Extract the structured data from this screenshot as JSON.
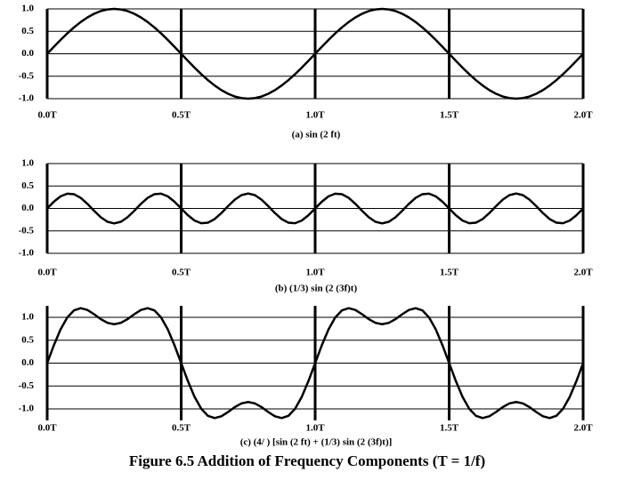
{
  "figure_caption": "Figure 6.5  Addition of Frequency Components (T = 1/f)",
  "chart_data": [
    {
      "type": "line",
      "title": "(a) sin (2  ft)",
      "grid": true,
      "color": "#000000",
      "x": [
        0,
        0.025,
        0.05,
        0.075,
        0.1,
        0.125,
        0.15,
        0.175,
        0.2,
        0.225,
        0.25,
        0.275,
        0.3,
        0.325,
        0.35,
        0.375,
        0.4,
        0.425,
        0.45,
        0.475,
        0.5,
        0.525,
        0.55,
        0.575,
        0.6,
        0.625,
        0.65,
        0.675,
        0.7,
        0.725,
        0.75,
        0.775,
        0.8,
        0.825,
        0.85,
        0.875,
        0.9,
        0.925,
        0.95,
        0.975,
        1,
        1.025,
        1.05,
        1.075,
        1.1,
        1.125,
        1.15,
        1.175,
        1.2,
        1.225,
        1.25,
        1.275,
        1.3,
        1.325,
        1.35,
        1.375,
        1.4,
        1.425,
        1.45,
        1.475,
        1.5,
        1.525,
        1.55,
        1.575,
        1.6,
        1.625,
        1.65,
        1.675,
        1.7,
        1.725,
        1.75,
        1.775,
        1.8,
        1.825,
        1.85,
        1.875,
        1.9,
        1.925,
        1.95,
        1.975,
        2
      ],
      "values": [
        0,
        0.156,
        0.309,
        0.454,
        0.588,
        0.707,
        0.809,
        0.891,
        0.951,
        0.988,
        1,
        0.988,
        0.951,
        0.891,
        0.809,
        0.707,
        0.588,
        0.454,
        0.309,
        0.156,
        0,
        -0.156,
        -0.309,
        -0.454,
        -0.588,
        -0.707,
        -0.809,
        -0.891,
        -0.951,
        -0.988,
        -1,
        -0.988,
        -0.951,
        -0.891,
        -0.809,
        -0.707,
        -0.588,
        -0.454,
        -0.309,
        -0.156,
        0,
        0.156,
        0.309,
        0.454,
        0.588,
        0.707,
        0.809,
        0.891,
        0.951,
        0.988,
        1,
        0.988,
        0.951,
        0.891,
        0.809,
        0.707,
        0.588,
        0.454,
        0.309,
        0.156,
        0,
        -0.156,
        -0.309,
        -0.454,
        -0.588,
        -0.707,
        -0.809,
        -0.891,
        -0.951,
        -0.988,
        -1,
        -0.988,
        -0.951,
        -0.891,
        -0.809,
        -0.707,
        -0.588,
        -0.454,
        -0.309,
        -0.156,
        0
      ],
      "xlim": [
        0,
        2
      ],
      "xticks": [
        {
          "value": 0,
          "label": "0.0T"
        },
        {
          "value": 0.5,
          "label": "0.5T"
        },
        {
          "value": 1,
          "label": "1.0T"
        },
        {
          "value": 1.5,
          "label": "1.5T"
        },
        {
          "value": 2,
          "label": "2.0T"
        }
      ],
      "ylim": [
        -1,
        1
      ],
      "yticks": [
        {
          "value": 1,
          "label": "1.0"
        },
        0.5,
        {
          "value": 0,
          "label": "0.0"
        },
        -0.5,
        {
          "value": -1,
          "label": "-1.0"
        }
      ]
    },
    {
      "type": "line",
      "title": "(b) (1/3) sin (2  (3f)t)",
      "grid": true,
      "color": "#000000",
      "x": [
        0,
        0.025,
        0.05,
        0.075,
        0.1,
        0.125,
        0.15,
        0.175,
        0.2,
        0.225,
        0.25,
        0.275,
        0.3,
        0.325,
        0.35,
        0.375,
        0.4,
        0.425,
        0.45,
        0.475,
        0.5,
        0.525,
        0.55,
        0.575,
        0.6,
        0.625,
        0.65,
        0.675,
        0.7,
        0.725,
        0.75,
        0.775,
        0.8,
        0.825,
        0.85,
        0.875,
        0.9,
        0.925,
        0.95,
        0.975,
        1,
        1.025,
        1.05,
        1.075,
        1.1,
        1.125,
        1.15,
        1.175,
        1.2,
        1.225,
        1.25,
        1.275,
        1.3,
        1.325,
        1.35,
        1.375,
        1.4,
        1.425,
        1.45,
        1.475,
        1.5,
        1.525,
        1.55,
        1.575,
        1.6,
        1.625,
        1.65,
        1.675,
        1.7,
        1.725,
        1.75,
        1.775,
        1.8,
        1.825,
        1.85,
        1.875,
        1.9,
        1.925,
        1.95,
        1.975,
        2
      ],
      "values": [
        0,
        0.151,
        0.27,
        0.329,
        0.317,
        0.236,
        0.103,
        -0.052,
        -0.196,
        -0.297,
        -0.333,
        -0.297,
        -0.196,
        -0.052,
        0.103,
        0.236,
        0.317,
        0.329,
        0.27,
        0.151,
        0,
        -0.151,
        -0.27,
        -0.329,
        -0.317,
        -0.236,
        -0.103,
        0.052,
        0.196,
        0.297,
        0.333,
        0.297,
        0.196,
        0.052,
        -0.103,
        -0.236,
        -0.317,
        -0.329,
        -0.27,
        -0.151,
        0,
        0.151,
        0.27,
        0.329,
        0.317,
        0.236,
        0.103,
        -0.052,
        -0.196,
        -0.297,
        -0.333,
        -0.297,
        -0.196,
        -0.052,
        0.103,
        0.236,
        0.317,
        0.329,
        0.27,
        0.151,
        0,
        -0.151,
        -0.27,
        -0.329,
        -0.317,
        -0.236,
        -0.103,
        0.052,
        0.196,
        0.297,
        0.333,
        0.297,
        0.196,
        0.052,
        -0.103,
        -0.236,
        -0.317,
        -0.329,
        -0.27,
        -0.151,
        0
      ],
      "xlim": [
        0,
        2
      ],
      "xticks": [
        {
          "value": 0,
          "label": "0.0T"
        },
        {
          "value": 0.5,
          "label": "0.5T"
        },
        {
          "value": 1,
          "label": "1.0T"
        },
        {
          "value": 1.5,
          "label": "1.5T"
        },
        {
          "value": 2,
          "label": "2.0T"
        }
      ],
      "ylim": [
        -1,
        1
      ],
      "yticks": [
        {
          "value": 1,
          "label": "1.0"
        },
        0.5,
        {
          "value": 0,
          "label": "0.0"
        },
        -0.5,
        {
          "value": -1,
          "label": "-1.0"
        }
      ]
    },
    {
      "type": "line",
      "title": "(c) (4/  ) [sin (2  ft) + (1/3) sin (2  (3f)t)]",
      "grid": true,
      "color": "#000000",
      "x": [
        0,
        0.025,
        0.05,
        0.075,
        0.1,
        0.125,
        0.15,
        0.175,
        0.2,
        0.225,
        0.25,
        0.275,
        0.3,
        0.325,
        0.35,
        0.375,
        0.4,
        0.425,
        0.45,
        0.475,
        0.5,
        0.525,
        0.55,
        0.575,
        0.6,
        0.625,
        0.65,
        0.675,
        0.7,
        0.725,
        0.75,
        0.775,
        0.8,
        0.825,
        0.85,
        0.875,
        0.9,
        0.925,
        0.95,
        0.975,
        1,
        1.025,
        1.05,
        1.075,
        1.1,
        1.125,
        1.15,
        1.175,
        1.2,
        1.225,
        1.25,
        1.275,
        1.3,
        1.325,
        1.35,
        1.375,
        1.4,
        1.425,
        1.45,
        1.475,
        1.5,
        1.525,
        1.55,
        1.575,
        1.6,
        1.625,
        1.65,
        1.675,
        1.7,
        1.725,
        1.75,
        1.775,
        1.8,
        1.825,
        1.85,
        1.875,
        1.9,
        1.925,
        1.95,
        1.975,
        2
      ],
      "values": [
        0,
        0.391,
        0.737,
        0.997,
        1.152,
        1.201,
        1.161,
        1.068,
        0.961,
        0.88,
        0.849,
        0.88,
        0.961,
        1.068,
        1.161,
        1.201,
        1.152,
        0.997,
        0.737,
        0.391,
        0,
        -0.391,
        -0.737,
        -0.997,
        -1.152,
        -1.201,
        -1.161,
        -1.068,
        -0.961,
        -0.88,
        -0.849,
        -0.88,
        -0.961,
        -1.068,
        -1.161,
        -1.201,
        -1.152,
        -0.997,
        -0.737,
        -0.391,
        0,
        0.391,
        0.737,
        0.997,
        1.152,
        1.201,
        1.161,
        1.068,
        0.961,
        0.88,
        0.849,
        0.88,
        0.961,
        1.068,
        1.161,
        1.201,
        1.152,
        0.997,
        0.737,
        0.391,
        0,
        -0.391,
        -0.737,
        -0.997,
        -1.152,
        -1.201,
        -1.161,
        -1.068,
        -0.961,
        -0.88,
        -0.849,
        -0.88,
        -0.961,
        -1.068,
        -1.161,
        -1.201,
        -1.152,
        -0.997,
        -0.737,
        -0.391,
        0
      ],
      "xlim": [
        0,
        2
      ],
      "xticks": [
        {
          "value": 0,
          "label": "0.0T"
        },
        {
          "value": 0.5,
          "label": "0.5T"
        },
        {
          "value": 1,
          "label": "1.0T"
        },
        {
          "value": 1.5,
          "label": "1.5T"
        },
        {
          "value": 2,
          "label": "2.0T"
        }
      ],
      "ylim": [
        -1.25,
        1.25
      ],
      "yticks": [
        {
          "value": 1,
          "label": "1.0"
        },
        0.5,
        {
          "value": 0,
          "label": "0.0"
        },
        -0.5,
        {
          "value": -1,
          "label": "-1.0"
        }
      ]
    }
  ]
}
